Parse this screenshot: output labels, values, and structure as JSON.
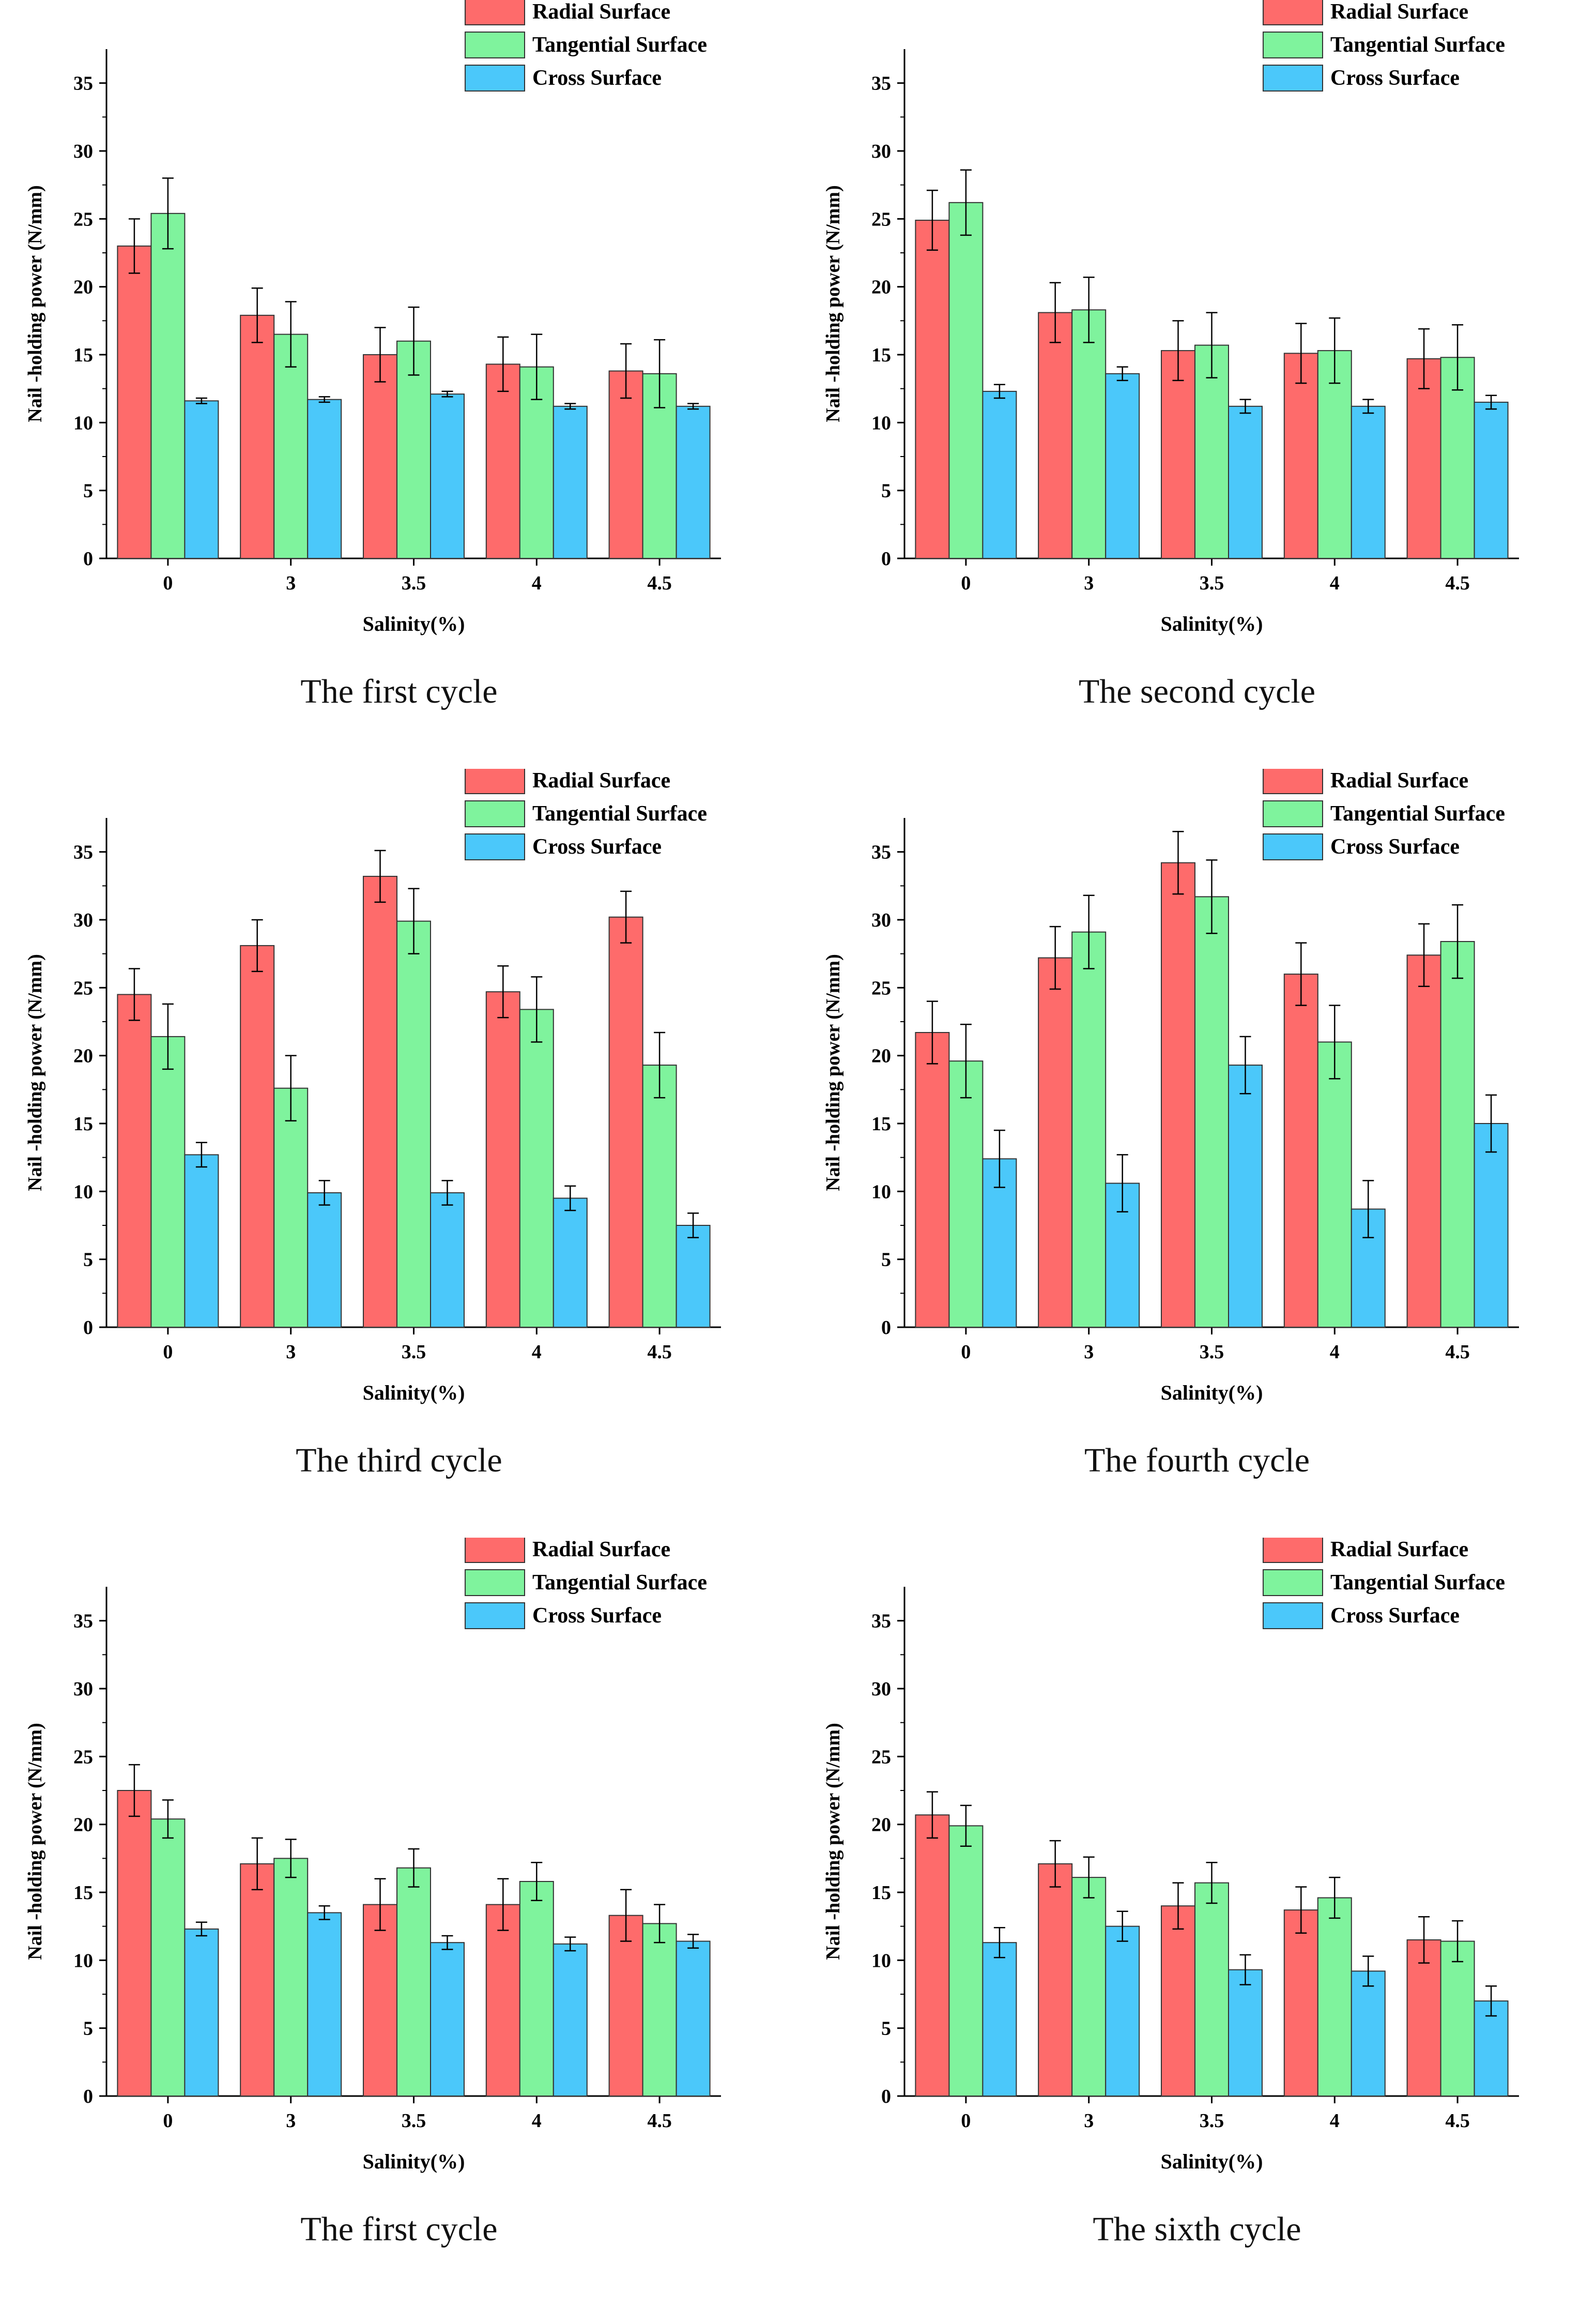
{
  "legend": {
    "radial": "Radial Surface",
    "tangential": "Tangential Surface",
    "cross": "Cross Surface"
  },
  "colors": {
    "radial": "#fe6b6b",
    "tangential": "#7ff39d",
    "cross": "#4bc8fa",
    "axis": "#000000"
  },
  "chart_data": [
    {
      "type": "bar",
      "caption": "The first cycle",
      "xlabel": "Salinity(%)",
      "ylabel": "Nail -holding power (N/mm)",
      "categories": [
        "0",
        "3",
        "3.5",
        "4",
        "4.5"
      ],
      "ylim": [
        0,
        37.5
      ],
      "yticks": [
        0,
        5,
        10,
        15,
        20,
        25,
        30,
        35
      ],
      "series": [
        {
          "name": "Radial Surface",
          "values": [
            23.0,
            17.9,
            15.0,
            14.3,
            13.8
          ],
          "errors": [
            2.0,
            2.0,
            2.0,
            2.0,
            2.0
          ]
        },
        {
          "name": "Tangential Surface",
          "values": [
            25.4,
            16.5,
            16.0,
            14.1,
            13.6
          ],
          "errors": [
            2.6,
            2.4,
            2.5,
            2.4,
            2.5
          ]
        },
        {
          "name": "Cross Surface",
          "values": [
            11.6,
            11.7,
            12.1,
            11.2,
            11.2
          ],
          "errors": [
            0.2,
            0.2,
            0.2,
            0.2,
            0.2
          ]
        }
      ]
    },
    {
      "type": "bar",
      "caption": "The second cycle",
      "xlabel": "Salinity(%)",
      "ylabel": "Nail -holding power (N/mm)",
      "categories": [
        "0",
        "3",
        "3.5",
        "4",
        "4.5"
      ],
      "ylim": [
        0,
        37.5
      ],
      "yticks": [
        0,
        5,
        10,
        15,
        20,
        25,
        30,
        35
      ],
      "series": [
        {
          "name": "Radial Surface",
          "values": [
            24.9,
            18.1,
            15.3,
            15.1,
            14.7
          ],
          "errors": [
            2.2,
            2.2,
            2.2,
            2.2,
            2.2
          ]
        },
        {
          "name": "Tangential Surface",
          "values": [
            26.2,
            18.3,
            15.7,
            15.3,
            14.8
          ],
          "errors": [
            2.4,
            2.4,
            2.4,
            2.4,
            2.4
          ]
        },
        {
          "name": "Cross Surface",
          "values": [
            12.3,
            13.6,
            11.2,
            11.2,
            11.5
          ],
          "errors": [
            0.5,
            0.5,
            0.5,
            0.5,
            0.5
          ]
        }
      ]
    },
    {
      "type": "bar",
      "caption": "The third cycle",
      "xlabel": "Salinity(%)",
      "ylabel": "Nail -holding power (N/mm)",
      "categories": [
        "0",
        "3",
        "3.5",
        "4",
        "4.5"
      ],
      "ylim": [
        0,
        37.5
      ],
      "yticks": [
        0,
        5,
        10,
        15,
        20,
        25,
        30,
        35
      ],
      "series": [
        {
          "name": "Radial Surface",
          "values": [
            24.5,
            28.1,
            33.2,
            24.7,
            30.2
          ],
          "errors": [
            1.9,
            1.9,
            1.9,
            1.9,
            1.9
          ]
        },
        {
          "name": "Tangential Surface",
          "values": [
            21.4,
            17.6,
            29.9,
            23.4,
            19.3
          ],
          "errors": [
            2.4,
            2.4,
            2.4,
            2.4,
            2.4
          ]
        },
        {
          "name": "Cross Surface",
          "values": [
            12.7,
            9.9,
            9.9,
            9.5,
            7.5
          ],
          "errors": [
            0.9,
            0.9,
            0.9,
            0.9,
            0.9
          ]
        }
      ]
    },
    {
      "type": "bar",
      "caption": "The fourth cycle",
      "xlabel": "Salinity(%)",
      "ylabel": "Nail -holding power (N/mm)",
      "categories": [
        "0",
        "3",
        "3.5",
        "4",
        "4.5"
      ],
      "ylim": [
        0,
        37.5
      ],
      "yticks": [
        0,
        5,
        10,
        15,
        20,
        25,
        30,
        35
      ],
      "series": [
        {
          "name": "Radial Surface",
          "values": [
            21.7,
            27.2,
            34.2,
            26.0,
            27.4
          ],
          "errors": [
            2.3,
            2.3,
            2.3,
            2.3,
            2.3
          ]
        },
        {
          "name": "Tangential Surface",
          "values": [
            19.6,
            29.1,
            31.7,
            21.0,
            28.4
          ],
          "errors": [
            2.7,
            2.7,
            2.7,
            2.7,
            2.7
          ]
        },
        {
          "name": "Cross Surface",
          "values": [
            12.4,
            10.6,
            19.3,
            8.7,
            15.0
          ],
          "errors": [
            2.1,
            2.1,
            2.1,
            2.1,
            2.1
          ]
        }
      ]
    },
    {
      "type": "bar",
      "caption": "The first cycle",
      "xlabel": "Salinity(%)",
      "ylabel": "Nail -holding power (N/mm)",
      "categories": [
        "0",
        "3",
        "3.5",
        "4",
        "4.5"
      ],
      "ylim": [
        0,
        37.5
      ],
      "yticks": [
        0,
        5,
        10,
        15,
        20,
        25,
        30,
        35
      ],
      "series": [
        {
          "name": "Radial Surface",
          "values": [
            22.5,
            17.1,
            14.1,
            14.1,
            13.3
          ],
          "errors": [
            1.9,
            1.9,
            1.9,
            1.9,
            1.9
          ]
        },
        {
          "name": "Tangential Surface",
          "values": [
            20.4,
            17.5,
            16.8,
            15.8,
            12.7
          ],
          "errors": [
            1.4,
            1.4,
            1.4,
            1.4,
            1.4
          ]
        },
        {
          "name": "Cross Surface",
          "values": [
            12.3,
            13.5,
            11.3,
            11.2,
            11.4
          ],
          "errors": [
            0.5,
            0.5,
            0.5,
            0.5,
            0.5
          ]
        }
      ]
    },
    {
      "type": "bar",
      "caption": "The sixth cycle",
      "xlabel": "Salinity(%)",
      "ylabel": "Nail -holding power (N/mm)",
      "categories": [
        "0",
        "3",
        "3.5",
        "4",
        "4.5"
      ],
      "ylim": [
        0,
        37.5
      ],
      "yticks": [
        0,
        5,
        10,
        15,
        20,
        25,
        30,
        35
      ],
      "series": [
        {
          "name": "Radial Surface",
          "values": [
            20.7,
            17.1,
            14.0,
            13.7,
            11.5
          ],
          "errors": [
            1.7,
            1.7,
            1.7,
            1.7,
            1.7
          ]
        },
        {
          "name": "Tangential Surface",
          "values": [
            19.9,
            16.1,
            15.7,
            14.6,
            11.4
          ],
          "errors": [
            1.5,
            1.5,
            1.5,
            1.5,
            1.5
          ]
        },
        {
          "name": "Cross Surface",
          "values": [
            11.3,
            12.5,
            9.3,
            9.2,
            7.0
          ],
          "errors": [
            1.1,
            1.1,
            1.1,
            1.1,
            1.1
          ]
        }
      ]
    }
  ]
}
